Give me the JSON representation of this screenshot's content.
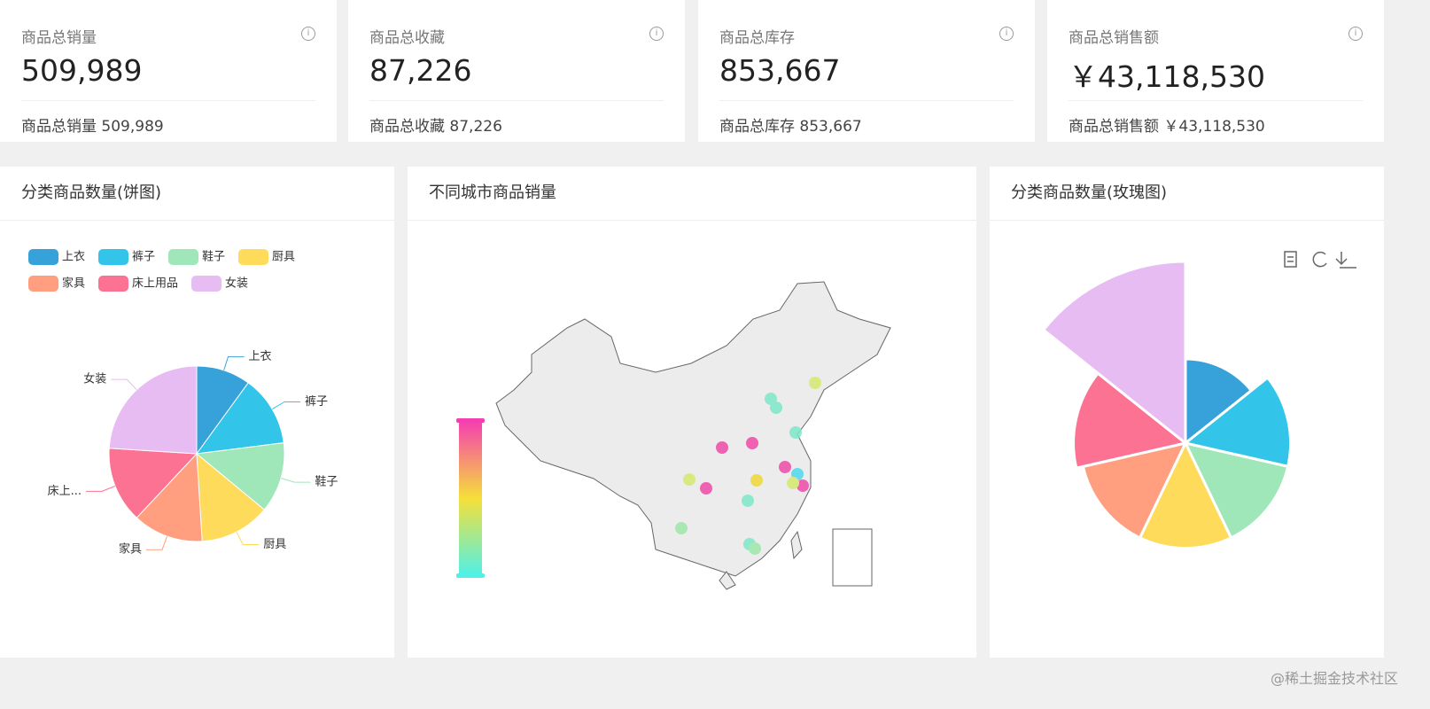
{
  "cards": [
    {
      "title": "商品总销量",
      "value": "509,989",
      "footer_label": "商品总销量",
      "footer_value": "509,989"
    },
    {
      "title": "商品总收藏",
      "value": "87,226",
      "footer_label": "商品总收藏",
      "footer_value": "87,226"
    },
    {
      "title": "商品总库存",
      "value": "853,667",
      "footer_label": "商品总库存",
      "footer_value": "853,667"
    },
    {
      "title": "商品总销售额",
      "value": "￥43,118,530",
      "footer_label": "商品总销售额",
      "footer_value": "￥43,118,530"
    }
  ],
  "pie": {
    "type": "pie",
    "title": "分类商品数量(饼图)",
    "categories": [
      "上衣",
      "裤子",
      "鞋子",
      "厨具",
      "家具",
      "床上用品",
      "女装"
    ],
    "labels": [
      "上衣",
      "裤子",
      "鞋子",
      "厨具",
      "家具",
      "床上...",
      "女装"
    ],
    "values": [
      10,
      13,
      13,
      13,
      13,
      14,
      24
    ],
    "colors": [
      "#37a2da",
      "#32c5e9",
      "#9fe6b8",
      "#ffdb5c",
      "#ff9f7f",
      "#fb7293",
      "#e7bcf3"
    ]
  },
  "map": {
    "title": "不同城市商品销量"
  },
  "rose": {
    "type": "rose",
    "title": "分类商品数量(玫瑰图)",
    "categories": [
      "上衣",
      "裤子",
      "鞋子",
      "厨具",
      "家具",
      "床上用品",
      "女装"
    ],
    "values": [
      10,
      13,
      13,
      13,
      13,
      14,
      24
    ],
    "colors": [
      "#37a2da",
      "#32c5e9",
      "#9fe6b8",
      "#ffdb5c",
      "#ff9f7f",
      "#fb7293",
      "#e7bcf3"
    ]
  },
  "watermark": "@稀土掘金技术社区"
}
